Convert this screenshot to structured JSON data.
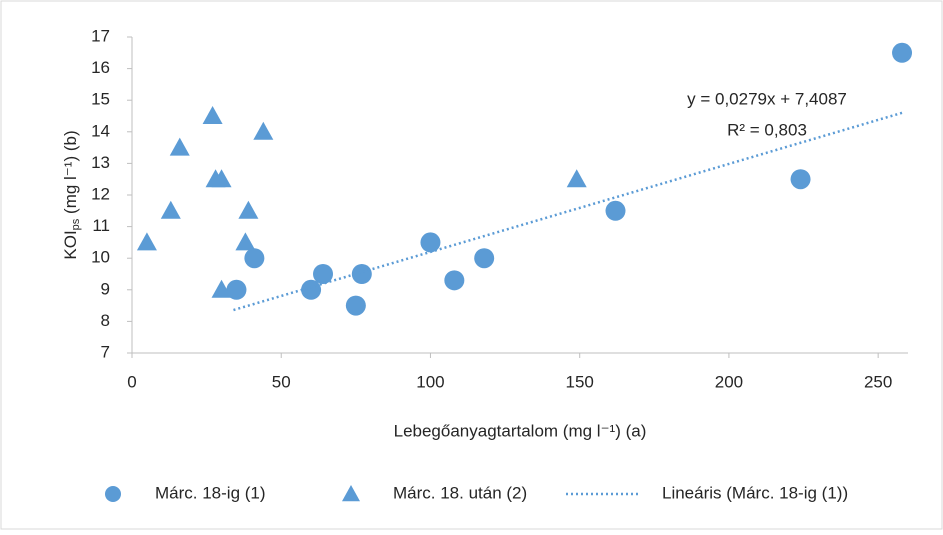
{
  "chart_data": {
    "type": "scatter",
    "x_label": "Lebegőanyagtartalom (mg l⁻¹) (a)",
    "y_label": {
      "main": "KOI",
      "sub": "ps",
      "rest": " (mg l⁻¹) (b)"
    },
    "xlim": [
      0,
      260
    ],
    "xticks": [
      0,
      50,
      100,
      150,
      200,
      250
    ],
    "ylim": [
      7,
      17
    ],
    "yticks": [
      7,
      8,
      9,
      10,
      11,
      12,
      13,
      14,
      15,
      16,
      17
    ],
    "legend": "bottom",
    "series": [
      {
        "name": "Márc. 18-ig (1)",
        "marker": "circle",
        "color": "#5b9bd5",
        "x": [
          35,
          41,
          60,
          64,
          75,
          77,
          100,
          108,
          118,
          162,
          224,
          258
        ],
        "values": [
          9,
          10,
          9,
          9.5,
          8.5,
          9.5,
          10.5,
          9.3,
          10,
          11.5,
          12.5,
          16.5
        ]
      },
      {
        "name": "Márc. 18. után (2)",
        "marker": "triangle",
        "color": "#5b9bd5",
        "x": [
          5,
          13,
          16,
          27,
          28,
          30,
          30,
          38,
          39,
          44,
          149
        ],
        "values": [
          10.5,
          11.5,
          13.5,
          14.5,
          12.5,
          12.5,
          9,
          10.5,
          11.5,
          14,
          12.5
        ]
      },
      {
        "name": "Lineáris (Márc. 18-ig (1))",
        "marker": "dotted-line",
        "color": "#5b9bd5",
        "x": [
          34,
          258
        ],
        "values": [
          8.36,
          14.6
        ]
      }
    ],
    "annotations": [
      "y = 0,0279x + 7,4087",
      "R² = 0,803"
    ]
  }
}
